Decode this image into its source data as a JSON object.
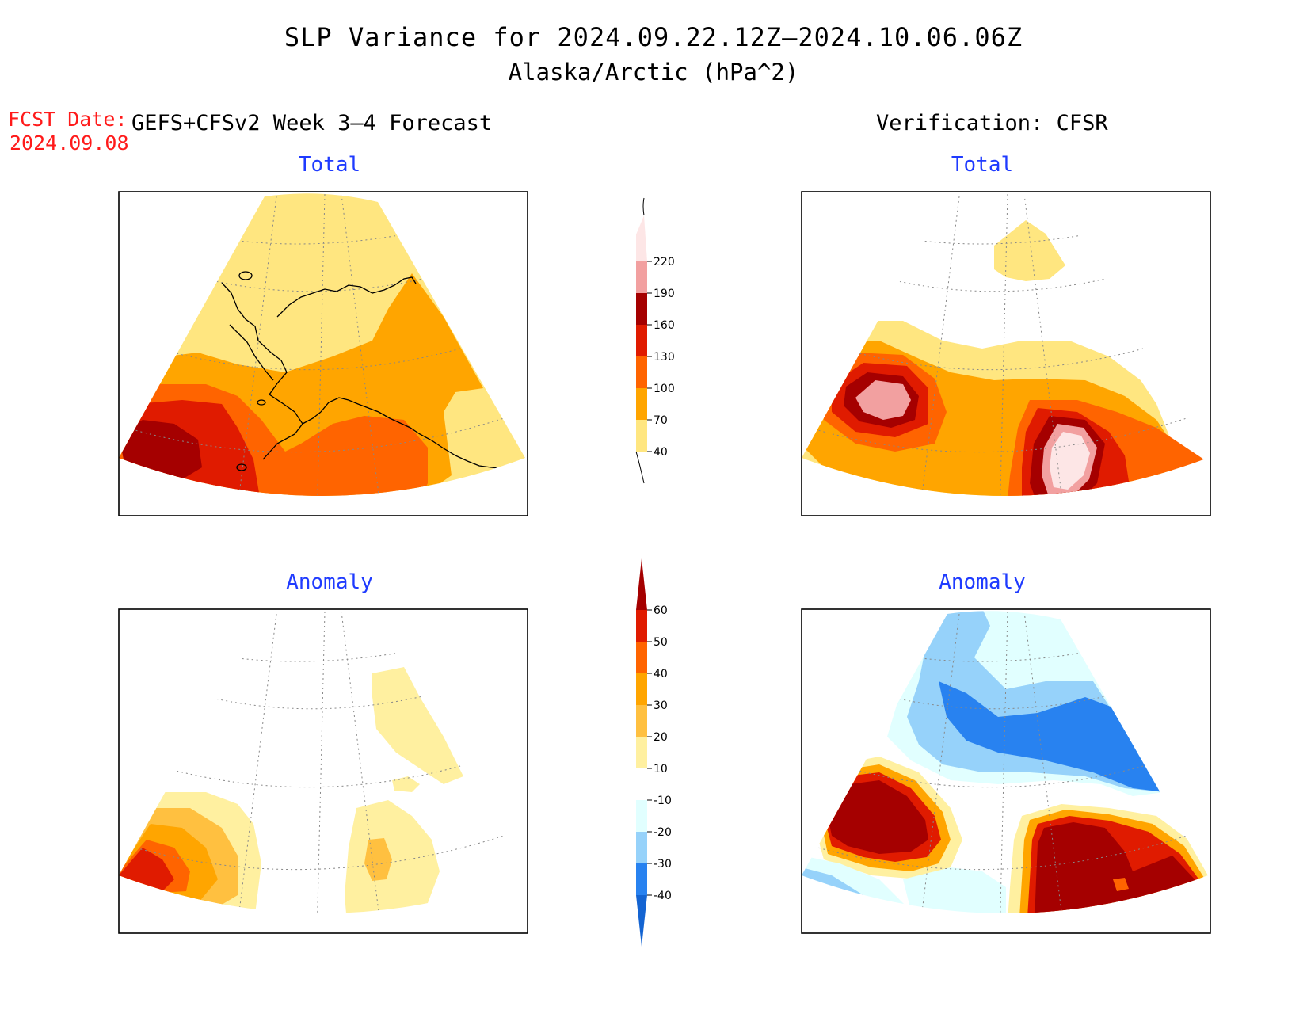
{
  "header": {
    "title": "SLP Variance for 2024.09.22.12Z–2024.10.06.06Z",
    "subtitle": "Alaska/Arctic (hPa^2)",
    "fcst_date_label": "FCST Date:",
    "fcst_date": "2024.09.08",
    "forecast_model": "GEFS+CFSv2 Week 3–4 Forecast",
    "verification": "Verification: CFSR"
  },
  "panels": [
    {
      "id": "fcst-total",
      "title": "Total"
    },
    {
      "id": "verif-total",
      "title": "Total"
    },
    {
      "id": "fcst-anomaly",
      "title": "Anomaly"
    },
    {
      "id": "verif-anomaly",
      "title": "Anomaly"
    }
  ],
  "colorbars": {
    "total": {
      "levels": [
        "40",
        "70",
        "100",
        "130",
        "160",
        "190",
        "220"
      ],
      "colors": [
        "#ffe680",
        "#ffa500",
        "#ff6400",
        "#e01b00",
        "#a50000",
        "#f2a0a0",
        "#fde6e6"
      ]
    },
    "anomaly": {
      "levels": [
        "-40",
        "-30",
        "-20",
        "-10",
        "10",
        "20",
        "30",
        "40",
        "50",
        "60"
      ],
      "colors": [
        "#1464d2",
        "#2882f0",
        "#96d2fa",
        "#e1ffff",
        "#ffffff",
        "#fff0a0",
        "#ffc040",
        "#ffa500",
        "#ff6400",
        "#e01b00",
        "#a50000"
      ]
    }
  }
}
